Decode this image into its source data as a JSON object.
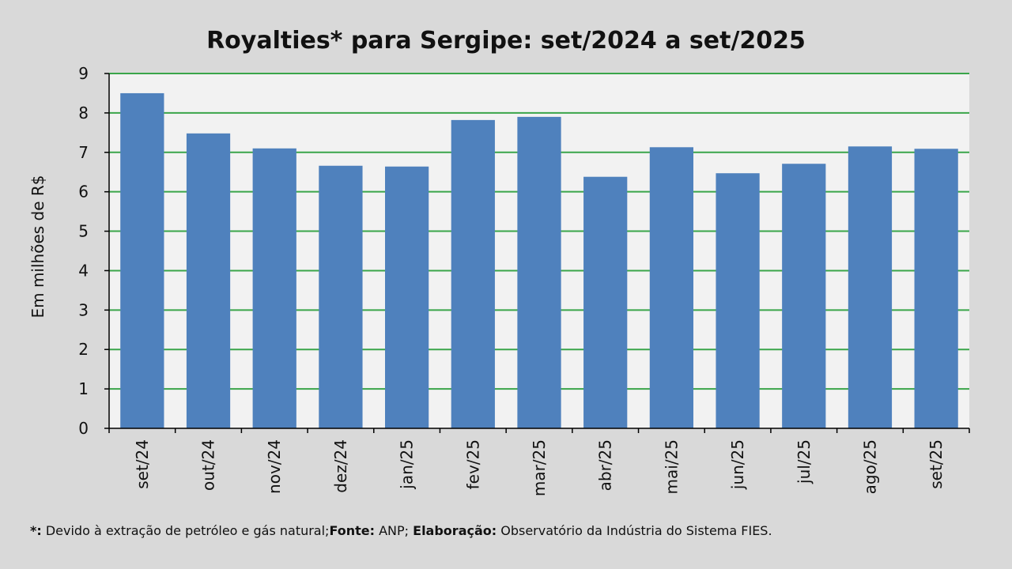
{
  "chart_data": {
    "type": "bar",
    "title": "Royalties* para Sergipe: set/2024 a set/2025",
    "xlabel": "",
    "ylabel": "Em milhões de R$",
    "ylim": [
      0,
      9
    ],
    "yticks": [
      0,
      1,
      2,
      3,
      4,
      5,
      6,
      7,
      8,
      9
    ],
    "grid": true,
    "legend": "none",
    "categories": [
      "set/24",
      "out/24",
      "nov/24",
      "dez/24",
      "jan/25",
      "fev/25",
      "mar/25",
      "abr/25",
      "mai/25",
      "jun/25",
      "jul/25",
      "ago/25",
      "set/25"
    ],
    "values": [
      8.5,
      7.48,
      7.1,
      6.66,
      6.64,
      7.82,
      7.9,
      6.38,
      7.13,
      6.47,
      6.71,
      7.15,
      7.09
    ],
    "colors": {
      "bar": "#4f81bd",
      "grid": "#3aa54a",
      "plot_bg": "#f2f2f2",
      "page_bg": "#d9d9d9"
    }
  },
  "footnote": {
    "label1": "*:",
    "text1": " Devido à extração de petróleo e gás natural;",
    "label2": "Fonte:",
    "text2": " ANP; ",
    "label3": "Elaboração:",
    "text3": " Observatório da Indústria do Sistema FIES."
  }
}
